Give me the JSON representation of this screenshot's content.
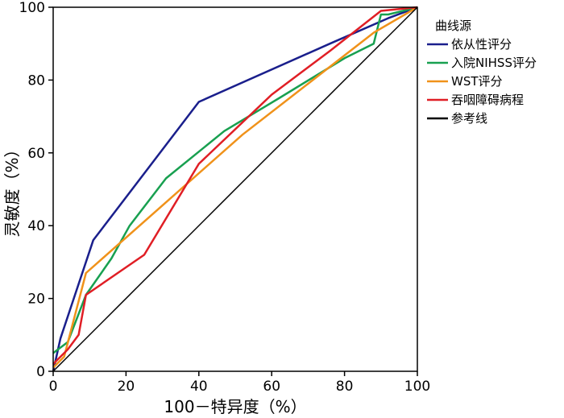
{
  "chart_data": {
    "type": "line",
    "xlabel": "100－特异度（%）",
    "ylabel": "灵敏度（%）",
    "xlim": [
      0,
      100
    ],
    "ylim": [
      0,
      100
    ],
    "xticks": [
      "0",
      "20",
      "40",
      "60",
      "80",
      "100"
    ],
    "yticks": [
      "0",
      "20",
      "40",
      "60",
      "80",
      "100"
    ],
    "grid": false,
    "legend": {
      "title": "曲线源",
      "placement": "right"
    },
    "series": [
      {
        "name": "依从性评分",
        "color": "#1a1f8c",
        "points": [
          [
            0,
            0
          ],
          [
            2,
            9
          ],
          [
            11,
            36
          ],
          [
            40,
            74
          ],
          [
            76,
            90
          ],
          [
            92,
            97
          ],
          [
            100,
            100
          ]
        ]
      },
      {
        "name": "入院NIHSS评分",
        "color": "#18a050",
        "points": [
          [
            0,
            5
          ],
          [
            4,
            8
          ],
          [
            9,
            21
          ],
          [
            16,
            31
          ],
          [
            21,
            40
          ],
          [
            31,
            53
          ],
          [
            47,
            66
          ],
          [
            62,
            75
          ],
          [
            80,
            86
          ],
          [
            88,
            90
          ],
          [
            90,
            98
          ],
          [
            92,
            98
          ],
          [
            100,
            100
          ]
        ]
      },
      {
        "name": "WST评分",
        "color": "#f0921a",
        "points": [
          [
            0,
            1
          ],
          [
            3,
            4
          ],
          [
            9,
            27
          ],
          [
            52,
            65
          ],
          [
            88,
            93
          ],
          [
            100,
            100
          ]
        ]
      },
      {
        "name": "吞咽障碍病程",
        "color": "#e01e25",
        "points": [
          [
            0,
            2
          ],
          [
            4,
            6
          ],
          [
            7,
            10
          ],
          [
            9,
            21
          ],
          [
            25,
            32
          ],
          [
            40,
            57
          ],
          [
            60,
            76
          ],
          [
            76,
            88
          ],
          [
            90,
            99
          ],
          [
            100,
            100
          ]
        ]
      },
      {
        "name": "参考线",
        "color": "#000000",
        "points": [
          [
            0,
            0
          ],
          [
            100,
            100
          ]
        ]
      }
    ]
  }
}
